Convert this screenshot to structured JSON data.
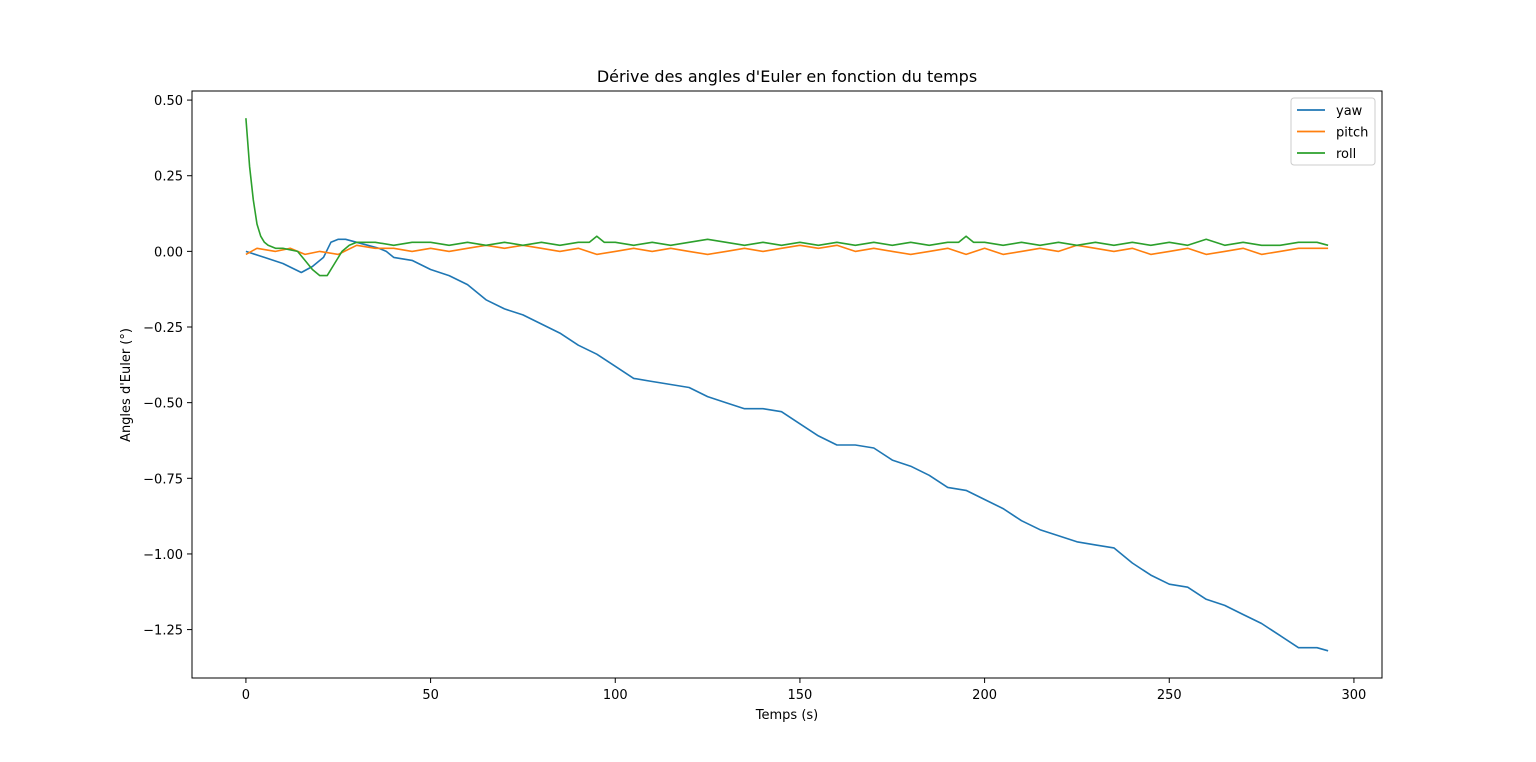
{
  "chart_data": {
    "type": "line",
    "title": "Dérive des angles d'Euler en fonction du temps",
    "xlabel": "Temps (s)",
    "ylabel": "Angles d'Euler (°)",
    "xlim": [
      -14.6,
      307.6
    ],
    "ylim": [
      -1.41,
      0.53
    ],
    "x_ticks": [
      0,
      50,
      100,
      150,
      200,
      250,
      300
    ],
    "x_tick_labels": [
      "0",
      "50",
      "100",
      "150",
      "200",
      "250",
      "300"
    ],
    "y_ticks": [
      0.5,
      0.25,
      0.0,
      -0.25,
      -0.5,
      -0.75,
      -1.0,
      -1.25
    ],
    "y_tick_labels": [
      "0.50",
      "0.25",
      "0.00",
      "−0.25",
      "−0.50",
      "−0.75",
      "−1.00",
      "−1.25"
    ],
    "grid": false,
    "legend_position": "top-right",
    "series": [
      {
        "name": "yaw",
        "color": "#1f77b4",
        "points": [
          [
            0,
            0.0
          ],
          [
            5,
            -0.02
          ],
          [
            10,
            -0.04
          ],
          [
            15,
            -0.07
          ],
          [
            18,
            -0.05
          ],
          [
            21,
            -0.02
          ],
          [
            23,
            0.03
          ],
          [
            25,
            0.04
          ],
          [
            27,
            0.04
          ],
          [
            30,
            0.03
          ],
          [
            33,
            0.02
          ],
          [
            36,
            0.01
          ],
          [
            38,
            0.0
          ],
          [
            40,
            -0.02
          ],
          [
            45,
            -0.03
          ],
          [
            50,
            -0.06
          ],
          [
            55,
            -0.08
          ],
          [
            60,
            -0.11
          ],
          [
            65,
            -0.16
          ],
          [
            70,
            -0.19
          ],
          [
            75,
            -0.21
          ],
          [
            80,
            -0.24
          ],
          [
            85,
            -0.27
          ],
          [
            90,
            -0.31
          ],
          [
            95,
            -0.34
          ],
          [
            100,
            -0.38
          ],
          [
            105,
            -0.42
          ],
          [
            110,
            -0.43
          ],
          [
            115,
            -0.44
          ],
          [
            120,
            -0.45
          ],
          [
            125,
            -0.48
          ],
          [
            130,
            -0.5
          ],
          [
            135,
            -0.52
          ],
          [
            140,
            -0.52
          ],
          [
            145,
            -0.53
          ],
          [
            150,
            -0.57
          ],
          [
            155,
            -0.61
          ],
          [
            160,
            -0.64
          ],
          [
            165,
            -0.64
          ],
          [
            170,
            -0.65
          ],
          [
            175,
            -0.69
          ],
          [
            180,
            -0.71
          ],
          [
            185,
            -0.74
          ],
          [
            190,
            -0.78
          ],
          [
            195,
            -0.79
          ],
          [
            200,
            -0.82
          ],
          [
            205,
            -0.85
          ],
          [
            210,
            -0.89
          ],
          [
            215,
            -0.92
          ],
          [
            220,
            -0.94
          ],
          [
            225,
            -0.96
          ],
          [
            230,
            -0.97
          ],
          [
            235,
            -0.98
          ],
          [
            240,
            -1.03
          ],
          [
            245,
            -1.07
          ],
          [
            250,
            -1.1
          ],
          [
            255,
            -1.11
          ],
          [
            260,
            -1.15
          ],
          [
            265,
            -1.17
          ],
          [
            270,
            -1.2
          ],
          [
            275,
            -1.23
          ],
          [
            280,
            -1.27
          ],
          [
            285,
            -1.31
          ],
          [
            290,
            -1.31
          ],
          [
            293,
            -1.32
          ]
        ]
      },
      {
        "name": "pitch",
        "color": "#ff7f0e",
        "points": [
          [
            0,
            -0.01
          ],
          [
            3,
            0.01
          ],
          [
            8,
            0.0
          ],
          [
            12,
            0.01
          ],
          [
            16,
            -0.01
          ],
          [
            20,
            0.0
          ],
          [
            25,
            -0.01
          ],
          [
            30,
            0.02
          ],
          [
            35,
            0.01
          ],
          [
            40,
            0.01
          ],
          [
            45,
            0.0
          ],
          [
            50,
            0.01
          ],
          [
            55,
            0.0
          ],
          [
            60,
            0.01
          ],
          [
            65,
            0.02
          ],
          [
            70,
            0.01
          ],
          [
            75,
            0.02
          ],
          [
            80,
            0.01
          ],
          [
            85,
            0.0
          ],
          [
            90,
            0.01
          ],
          [
            95,
            -0.01
          ],
          [
            100,
            0.0
          ],
          [
            105,
            0.01
          ],
          [
            110,
            0.0
          ],
          [
            115,
            0.01
          ],
          [
            120,
            0.0
          ],
          [
            125,
            -0.01
          ],
          [
            130,
            0.0
          ],
          [
            135,
            0.01
          ],
          [
            140,
            0.0
          ],
          [
            145,
            0.01
          ],
          [
            150,
            0.02
          ],
          [
            155,
            0.01
          ],
          [
            160,
            0.02
          ],
          [
            165,
            0.0
          ],
          [
            170,
            0.01
          ],
          [
            175,
            0.0
          ],
          [
            180,
            -0.01
          ],
          [
            185,
            0.0
          ],
          [
            190,
            0.01
          ],
          [
            195,
            -0.01
          ],
          [
            200,
            0.01
          ],
          [
            205,
            -0.01
          ],
          [
            210,
            0.0
          ],
          [
            215,
            0.01
          ],
          [
            220,
            0.0
          ],
          [
            225,
            0.02
          ],
          [
            230,
            0.01
          ],
          [
            235,
            0.0
          ],
          [
            240,
            0.01
          ],
          [
            245,
            -0.01
          ],
          [
            250,
            0.0
          ],
          [
            255,
            0.01
          ],
          [
            260,
            -0.01
          ],
          [
            265,
            0.0
          ],
          [
            270,
            0.01
          ],
          [
            275,
            -0.01
          ],
          [
            280,
            0.0
          ],
          [
            285,
            0.01
          ],
          [
            290,
            0.01
          ],
          [
            293,
            0.01
          ]
        ]
      },
      {
        "name": "roll",
        "color": "#2ca02c",
        "points": [
          [
            0,
            0.44
          ],
          [
            1,
            0.28
          ],
          [
            2,
            0.17
          ],
          [
            3,
            0.09
          ],
          [
            4,
            0.05
          ],
          [
            5,
            0.03
          ],
          [
            6,
            0.02
          ],
          [
            8,
            0.01
          ],
          [
            10,
            0.01
          ],
          [
            14,
            0.0
          ],
          [
            16,
            -0.03
          ],
          [
            18,
            -0.06
          ],
          [
            20,
            -0.08
          ],
          [
            22,
            -0.08
          ],
          [
            24,
            -0.04
          ],
          [
            26,
            0.0
          ],
          [
            28,
            0.02
          ],
          [
            30,
            0.03
          ],
          [
            35,
            0.03
          ],
          [
            40,
            0.02
          ],
          [
            45,
            0.03
          ],
          [
            50,
            0.03
          ],
          [
            55,
            0.02
          ],
          [
            60,
            0.03
          ],
          [
            65,
            0.02
          ],
          [
            70,
            0.03
          ],
          [
            75,
            0.02
          ],
          [
            80,
            0.03
          ],
          [
            85,
            0.02
          ],
          [
            90,
            0.03
          ],
          [
            93,
            0.03
          ],
          [
            95,
            0.05
          ],
          [
            97,
            0.03
          ],
          [
            100,
            0.03
          ],
          [
            105,
            0.02
          ],
          [
            110,
            0.03
          ],
          [
            115,
            0.02
          ],
          [
            120,
            0.03
          ],
          [
            125,
            0.04
          ],
          [
            130,
            0.03
          ],
          [
            135,
            0.02
          ],
          [
            140,
            0.03
          ],
          [
            145,
            0.02
          ],
          [
            150,
            0.03
          ],
          [
            155,
            0.02
          ],
          [
            160,
            0.03
          ],
          [
            165,
            0.02
          ],
          [
            170,
            0.03
          ],
          [
            175,
            0.02
          ],
          [
            180,
            0.03
          ],
          [
            185,
            0.02
          ],
          [
            190,
            0.03
          ],
          [
            193,
            0.03
          ],
          [
            195,
            0.05
          ],
          [
            197,
            0.03
          ],
          [
            200,
            0.03
          ],
          [
            205,
            0.02
          ],
          [
            210,
            0.03
          ],
          [
            215,
            0.02
          ],
          [
            220,
            0.03
          ],
          [
            225,
            0.02
          ],
          [
            230,
            0.03
          ],
          [
            235,
            0.02
          ],
          [
            240,
            0.03
          ],
          [
            245,
            0.02
          ],
          [
            250,
            0.03
          ],
          [
            255,
            0.02
          ],
          [
            260,
            0.04
          ],
          [
            265,
            0.02
          ],
          [
            270,
            0.03
          ],
          [
            275,
            0.02
          ],
          [
            280,
            0.02
          ],
          [
            285,
            0.03
          ],
          [
            290,
            0.03
          ],
          [
            293,
            0.02
          ]
        ]
      }
    ]
  }
}
